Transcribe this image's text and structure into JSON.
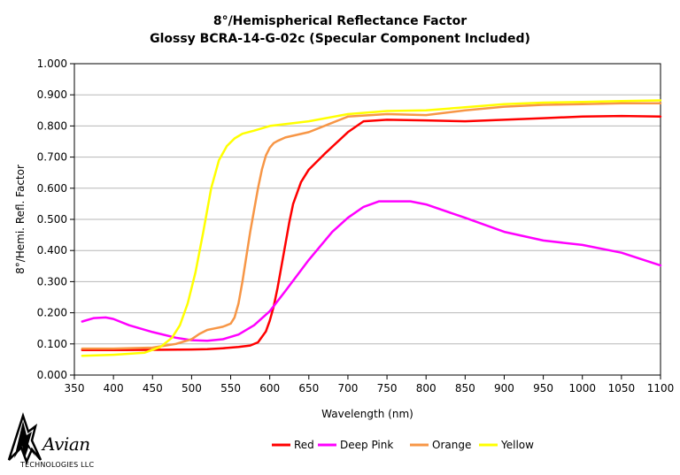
{
  "chart_data": {
    "type": "line",
    "title": "8°/Hemispherical Reflectance Factor",
    "subtitle": "Glossy BCRA-14-G-02c (Specular Component Included)",
    "xlabel": "Wavelength (nm)",
    "ylabel": "8°/Hemi. Refl. Factor",
    "xlim": [
      350,
      1100
    ],
    "ylim": [
      0,
      1
    ],
    "xticks": [
      "350",
      "400",
      "450",
      "500",
      "550",
      "600",
      "650",
      "700",
      "750",
      "800",
      "850",
      "900",
      "950",
      "1000",
      "1050",
      "1100"
    ],
    "yticks": [
      "0.000",
      "0.100",
      "0.200",
      "0.300",
      "0.400",
      "0.500",
      "0.600",
      "0.700",
      "0.800",
      "0.900",
      "1.000"
    ],
    "legend_position": "bottom",
    "series": [
      {
        "name": "Red",
        "color": "#ff0000",
        "x": [
          360,
          400,
          450,
          500,
          520,
          540,
          560,
          575,
          585,
          595,
          600,
          605,
          610,
          615,
          620,
          625,
          630,
          640,
          650,
          670,
          700,
          720,
          750,
          800,
          850,
          900,
          950,
          1000,
          1050,
          1100
        ],
        "y": [
          0.08,
          0.08,
          0.081,
          0.082,
          0.083,
          0.086,
          0.09,
          0.095,
          0.105,
          0.14,
          0.175,
          0.22,
          0.28,
          0.35,
          0.42,
          0.49,
          0.55,
          0.62,
          0.66,
          0.71,
          0.78,
          0.815,
          0.82,
          0.818,
          0.815,
          0.82,
          0.825,
          0.83,
          0.832,
          0.83
        ]
      },
      {
        "name": "Deep Pink",
        "color": "#ff00ff",
        "x": [
          360,
          375,
          390,
          400,
          420,
          450,
          480,
          500,
          520,
          540,
          560,
          580,
          600,
          620,
          650,
          680,
          700,
          720,
          740,
          780,
          800,
          850,
          900,
          950,
          1000,
          1050,
          1100
        ],
        "y": [
          0.172,
          0.183,
          0.185,
          0.18,
          0.16,
          0.138,
          0.12,
          0.112,
          0.11,
          0.115,
          0.13,
          0.16,
          0.205,
          0.27,
          0.37,
          0.46,
          0.505,
          0.54,
          0.558,
          0.558,
          0.548,
          0.505,
          0.46,
          0.432,
          0.418,
          0.393,
          0.352
        ]
      },
      {
        "name": "Orange",
        "color": "#f79646",
        "x": [
          360,
          400,
          450,
          480,
          500,
          510,
          520,
          530,
          540,
          550,
          555,
          560,
          565,
          570,
          575,
          580,
          585,
          590,
          595,
          600,
          605,
          610,
          620,
          650,
          700,
          750,
          800,
          850,
          900,
          950,
          1000,
          1050,
          1100
        ],
        "y": [
          0.085,
          0.085,
          0.088,
          0.1,
          0.115,
          0.132,
          0.145,
          0.15,
          0.155,
          0.165,
          0.185,
          0.23,
          0.3,
          0.38,
          0.46,
          0.53,
          0.6,
          0.66,
          0.705,
          0.73,
          0.745,
          0.752,
          0.763,
          0.78,
          0.83,
          0.838,
          0.835,
          0.85,
          0.862,
          0.868,
          0.87,
          0.873,
          0.873
        ]
      },
      {
        "name": "Yellow",
        "color": "#ffff00",
        "x": [
          360,
          400,
          440,
          460,
          475,
          485,
          495,
          505,
          515,
          525,
          535,
          545,
          555,
          565,
          580,
          600,
          650,
          700,
          750,
          800,
          850,
          900,
          950,
          1000,
          1050,
          1100
        ],
        "y": [
          0.062,
          0.065,
          0.072,
          0.09,
          0.12,
          0.16,
          0.23,
          0.33,
          0.46,
          0.6,
          0.69,
          0.735,
          0.76,
          0.775,
          0.785,
          0.8,
          0.815,
          0.838,
          0.848,
          0.85,
          0.86,
          0.87,
          0.875,
          0.877,
          0.88,
          0.882
        ]
      }
    ]
  },
  "logo": {
    "name": "Avian",
    "sub": "TECHNOLOGIES LLC"
  }
}
